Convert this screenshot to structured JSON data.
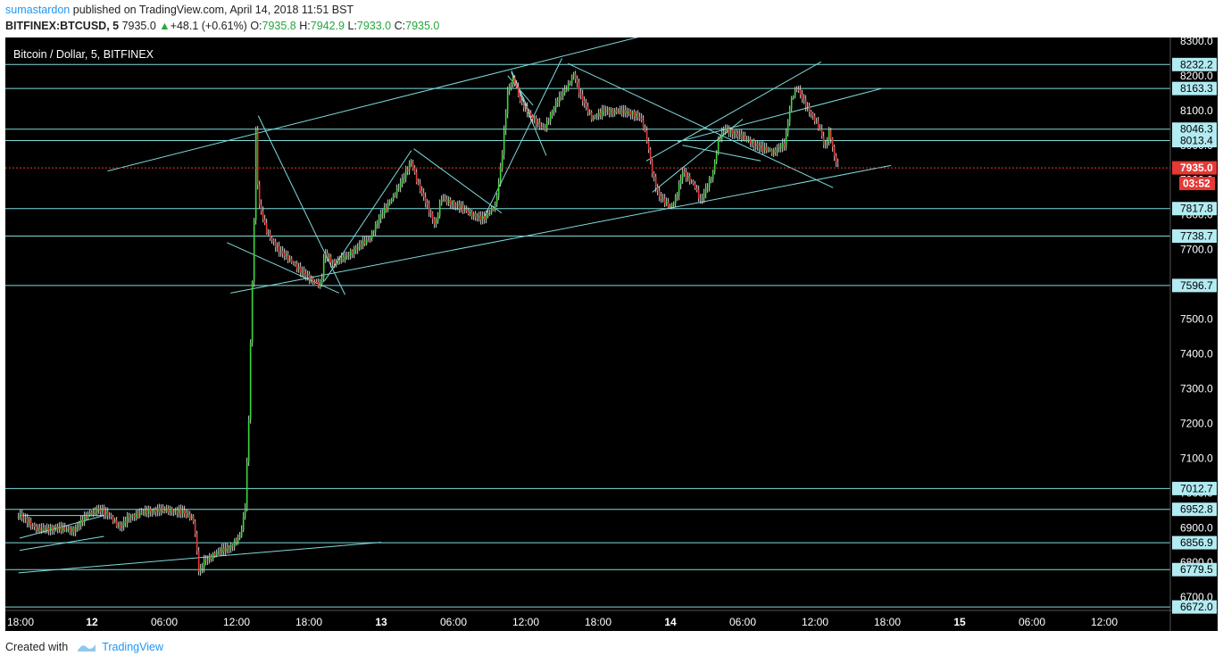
{
  "header": {
    "user": "sumastardon",
    "published_text": " published on TradingView.com, April 14, 2018 11:51 BST",
    "symbol": "BITFINEX:BTCUSD, 5",
    "price": "7935.0",
    "change_arrow": "▲",
    "change": "+48.1 (+0.61%)",
    "o_label": "O:",
    "o_value": "7935.8",
    "h_label": "H:",
    "h_value": "7942.9",
    "l_label": "L:",
    "l_value": "7933.0",
    "c_label": "C:",
    "c_value": "7935.0"
  },
  "chart_data": {
    "type": "candlestick",
    "title": "Bitcoin / Dollar, 5, BITFINEX",
    "ylim": [
      6662,
      8310
    ],
    "y_ticks": [
      8300,
      8200,
      8100,
      8000,
      7900,
      7800,
      7700,
      7600,
      7500,
      7400,
      7300,
      7200,
      7100,
      7000,
      6900,
      6800,
      6700
    ],
    "y_tick_labels": [
      "8300.0",
      "8200.0",
      "8100.0",
      "8000.0",
      "7900.0",
      "7800.0",
      "7700.0",
      "7600.0",
      "7500.0",
      "7400.0",
      "7300.0",
      "7200.0",
      "7100.0",
      "7000.0",
      "6900.0",
      "6800.0",
      "6700.0"
    ],
    "x_ticks": [
      {
        "t": 0,
        "label": "18:00",
        "bold": false
      },
      {
        "t": 6,
        "label": "12",
        "bold": true
      },
      {
        "t": 12,
        "label": "06:00",
        "bold": false
      },
      {
        "t": 18,
        "label": "12:00",
        "bold": false
      },
      {
        "t": 24,
        "label": "18:00",
        "bold": false
      },
      {
        "t": 30,
        "label": "13",
        "bold": true
      },
      {
        "t": 36,
        "label": "06:00",
        "bold": false
      },
      {
        "t": 42,
        "label": "12:00",
        "bold": false
      },
      {
        "t": 48,
        "label": "18:00",
        "bold": false
      },
      {
        "t": 54,
        "label": "14",
        "bold": true
      },
      {
        "t": 60,
        "label": "06:00",
        "bold": false
      },
      {
        "t": 66,
        "label": "12:00",
        "bold": false
      },
      {
        "t": 72,
        "label": "18:00",
        "bold": false
      },
      {
        "t": 78,
        "label": "15",
        "bold": true
      },
      {
        "t": 84,
        "label": "06:00",
        "bold": false
      },
      {
        "t": 90,
        "label": "12:00",
        "bold": false
      }
    ],
    "horizontal_levels": [
      {
        "value": 8232.2,
        "label": "8232.2"
      },
      {
        "value": 8163.3,
        "label": "8163.3"
      },
      {
        "value": 8046.3,
        "label": "8046.3"
      },
      {
        "value": 8013.4,
        "label": "8013.4"
      },
      {
        "value": 7817.8,
        "label": "7817.8"
      },
      {
        "value": 7738.7,
        "label": "7738.7"
      },
      {
        "value": 7596.7,
        "label": "7596.7"
      },
      {
        "value": 7012.7,
        "label": "7012.7"
      },
      {
        "value": 6952.8,
        "label": "6952.8"
      },
      {
        "value": 6856.9,
        "label": "6856.9"
      },
      {
        "value": 6779.5,
        "label": "6779.5"
      },
      {
        "value": 6672.0,
        "label": "6672.0"
      }
    ],
    "last_price": {
      "value": 7935.0,
      "label": "7935.0",
      "countdown": "03:52"
    },
    "price_path": [
      [
        -0.1,
        6930
      ],
      [
        1.5,
        6890
      ],
      [
        3,
        6910
      ],
      [
        4.5,
        6895
      ],
      [
        5.5,
        6925
      ],
      [
        6.5,
        6945
      ],
      [
        7.5,
        6935
      ],
      [
        8.3,
        6905
      ],
      [
        9,
        6940
      ],
      [
        10.5,
        6945
      ],
      [
        12,
        6940
      ],
      [
        13.5,
        6950
      ],
      [
        14.4,
        6935
      ],
      [
        14.6,
        6880
      ],
      [
        14.9,
        6775
      ],
      [
        15.3,
        6810
      ],
      [
        16.5,
        6825
      ],
      [
        17.5,
        6835
      ],
      [
        18.3,
        6870
      ],
      [
        18.7,
        6950
      ],
      [
        19,
        7200
      ],
      [
        19.2,
        7500
      ],
      [
        19.4,
        7700
      ],
      [
        19.6,
        8050
      ],
      [
        19.8,
        7850
      ],
      [
        20.5,
        7760
      ],
      [
        21.5,
        7700
      ],
      [
        22.5,
        7660
      ],
      [
        23.3,
        7630
      ],
      [
        24.3,
        7610
      ],
      [
        25,
        7600
      ],
      [
        25.3,
        7700
      ],
      [
        26,
        7670
      ],
      [
        27,
        7680
      ],
      [
        28,
        7700
      ],
      [
        29,
        7720
      ],
      [
        29.5,
        7760
      ],
      [
        30,
        7800
      ],
      [
        31,
        7860
      ],
      [
        32.5,
        7960
      ],
      [
        33,
        7890
      ],
      [
        34.5,
        7760
      ],
      [
        35,
        7840
      ],
      [
        36.5,
        7830
      ],
      [
        37.5,
        7810
      ],
      [
        38.5,
        7790
      ],
      [
        39.5,
        7820
      ],
      [
        40,
        7950
      ],
      [
        40.5,
        8150
      ],
      [
        41,
        8190
      ],
      [
        41.5,
        8130
      ],
      [
        42.5,
        8090
      ],
      [
        43.5,
        8050
      ],
      [
        44.5,
        8120
      ],
      [
        45.5,
        8160
      ],
      [
        46,
        8200
      ],
      [
        46.5,
        8140
      ],
      [
        47.5,
        8080
      ],
      [
        48.5,
        8110
      ],
      [
        49.5,
        8100
      ],
      [
        50.5,
        8090
      ],
      [
        51.5,
        8070
      ],
      [
        52,
        8020
      ],
      [
        52.5,
        7920
      ],
      [
        53,
        7860
      ],
      [
        54,
        7830
      ],
      [
        54.5,
        7860
      ],
      [
        55,
        7930
      ],
      [
        56,
        7880
      ],
      [
        56.5,
        7830
      ],
      [
        57.5,
        7910
      ],
      [
        58,
        8010
      ],
      [
        58.5,
        8050
      ],
      [
        59.5,
        8040
      ],
      [
        60.5,
        8020
      ],
      [
        61.5,
        7990
      ],
      [
        62.5,
        7970
      ],
      [
        63.5,
        8000
      ],
      [
        64,
        8130
      ],
      [
        64.5,
        8170
      ],
      [
        65,
        8140
      ],
      [
        65.5,
        8110
      ],
      [
        66,
        8080
      ],
      [
        66.5,
        8040
      ],
      [
        66.8,
        7990
      ],
      [
        67.2,
        8040
      ],
      [
        67.6,
        7960
      ],
      [
        67.9,
        7935
      ]
    ],
    "trendlines": [
      [
        [
          7.3,
          7926
        ],
        [
          53.5,
          8330
        ]
      ],
      [
        [
          -0.1,
          6770
        ],
        [
          30,
          6858
        ]
      ],
      [
        [
          17.5,
          7575
        ],
        [
          72.3,
          7942
        ]
      ],
      [
        [
          19.8,
          8085
        ],
        [
          27,
          7570
        ]
      ],
      [
        [
          17.2,
          7720
        ],
        [
          26.5,
          7575
        ]
      ],
      [
        [
          25.3,
          7610
        ],
        [
          32.5,
          7985
        ]
      ],
      [
        [
          32.7,
          7990
        ],
        [
          40,
          7805
        ]
      ],
      [
        [
          38.5,
          7790
        ],
        [
          45,
          8250
        ]
      ],
      [
        [
          42.6,
          8115
        ],
        [
          40.5,
          8200
        ]
      ],
      [
        [
          42.5,
          8080
        ],
        [
          40.8,
          8215
        ]
      ],
      [
        [
          40.8,
          8210
        ],
        [
          43.7,
          7970
        ]
      ],
      [
        [
          45.5,
          8235
        ],
        [
          67.5,
          7878
        ]
      ],
      [
        [
          52,
          7955
        ],
        [
          66.5,
          8240
        ]
      ],
      [
        [
          54.6,
          8010
        ],
        [
          71.5,
          8163
        ]
      ],
      [
        [
          52.5,
          7865
        ],
        [
          60,
          8075
        ]
      ],
      [
        [
          61.5,
          7955
        ],
        [
          55,
          8000
        ]
      ],
      [
        [
          0,
          6870
        ],
        [
          7,
          6935
        ]
      ],
      [
        [
          0,
          6835
        ],
        [
          7,
          6875
        ]
      ],
      [
        [
          0,
          6935
        ],
        [
          7,
          6935
        ]
      ]
    ]
  },
  "footer": {
    "created_with": "Created with",
    "brand": "TradingView"
  },
  "colors": {
    "background": "#000000",
    "line": "#7fdbdb",
    "level_label_bg": "#b2ebf2",
    "up": "#3bd63b",
    "down": "#e53935",
    "wick": "#cccccc",
    "last_price": "#e53935",
    "grid_text": "#ffffff"
  }
}
